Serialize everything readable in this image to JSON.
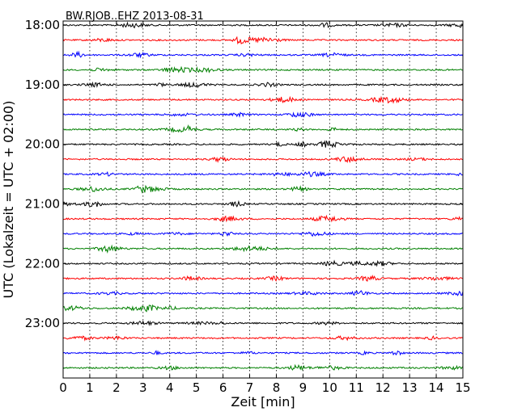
{
  "chart_data": {
    "type": "line",
    "title": "BW.RJOB..EHZ 2013-08-31",
    "xlabel": "Zeit  [min]",
    "ylabel": "UTC (Lokalzeit = UTC + 02:00)",
    "xlim": [
      0,
      15
    ],
    "x_ticks": [
      0,
      1,
      2,
      3,
      4,
      5,
      6,
      7,
      8,
      9,
      10,
      11,
      12,
      13,
      14,
      15
    ],
    "y_tick_labels": [
      "18:00",
      "19:00",
      "20:00",
      "21:00",
      "22:00",
      "23:00"
    ],
    "y_tick_hours": [
      18,
      19,
      20,
      21,
      22,
      23
    ],
    "ylim_hours": [
      17.93,
      23.92
    ],
    "trace_interval_min": 15,
    "trace_start_hour": 18,
    "trace_count": 24,
    "trace_colors": [
      "#000000",
      "#ff0000",
      "#0000ff",
      "#008000"
    ],
    "grid": "vertical-dotted"
  }
}
